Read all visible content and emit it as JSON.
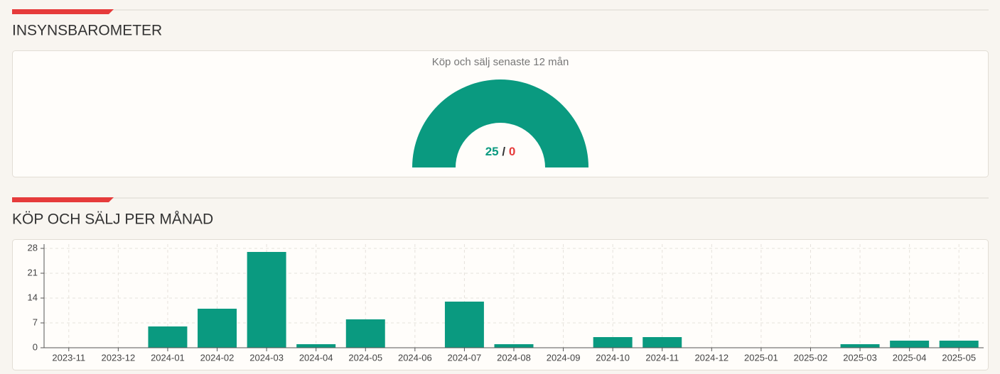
{
  "sections": [
    {
      "heading": "INSYNSBAROMETER"
    },
    {
      "heading": "KÖP OCH SÄLJ PER MÅNAD"
    }
  ],
  "chart_data": [
    {
      "type": "gauge",
      "title": "Köp och sälj senaste 12 mån",
      "values": [
        25,
        0
      ],
      "separator": "/",
      "colors": [
        "#0a9a80",
        "#e63b3b"
      ]
    },
    {
      "type": "bar",
      "categories": [
        "2023-11",
        "2023-12",
        "2024-01",
        "2024-02",
        "2024-03",
        "2024-04",
        "2024-05",
        "2024-06",
        "2024-07",
        "2024-08",
        "2024-09",
        "2024-10",
        "2024-11",
        "2024-12",
        "2025-01",
        "2025-02",
        "2025-03",
        "2025-04",
        "2025-05"
      ],
      "values": [
        0,
        0,
        6,
        11,
        27,
        1,
        8,
        0,
        13,
        1,
        0,
        3,
        3,
        0,
        0,
        0,
        1,
        2,
        2
      ],
      "color": "#0a9a80",
      "ylim": [
        0,
        29.2
      ],
      "yticks": [
        0,
        7,
        14,
        21,
        28
      ],
      "grid": true
    }
  ]
}
